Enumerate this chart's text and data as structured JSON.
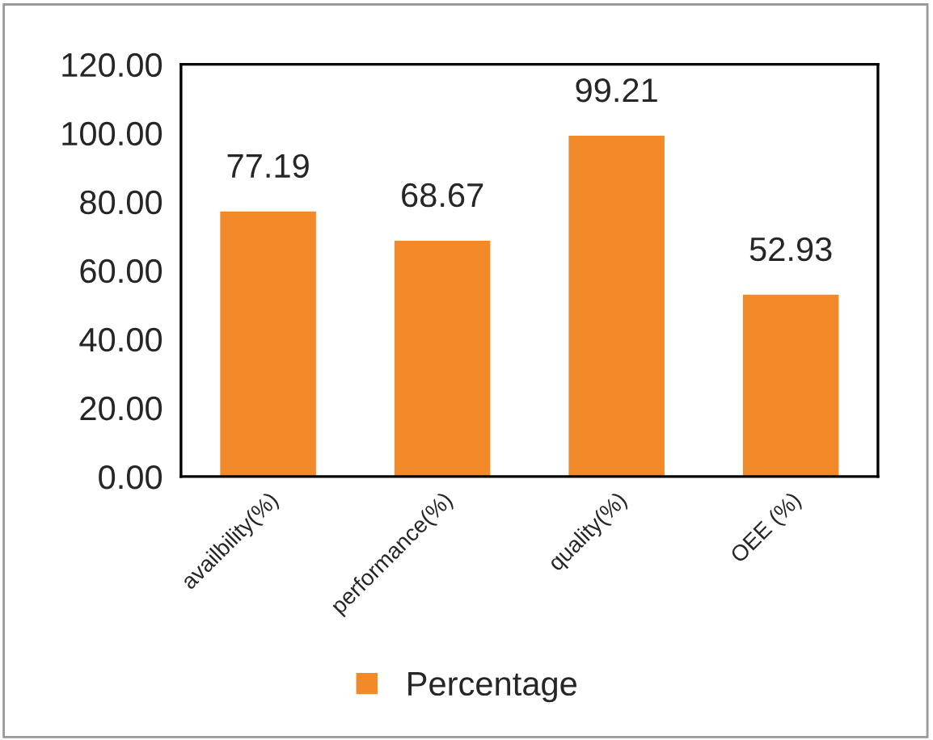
{
  "chart_data": {
    "type": "bar",
    "categories": [
      "availbility(%)",
      "performance(%)",
      "quality(%)",
      "OEE (%)"
    ],
    "series": [
      {
        "name": "Percentage",
        "color": "#f28a2a",
        "values": [
          77.19,
          68.67,
          99.21,
          52.93
        ]
      }
    ],
    "ylim": [
      0,
      120
    ],
    "yticks": [
      {
        "value": 0,
        "label": "0.00"
      },
      {
        "value": 20,
        "label": "20.00"
      },
      {
        "value": 40,
        "label": "40.00"
      },
      {
        "value": 60,
        "label": "60.00"
      },
      {
        "value": 80,
        "label": "80.00"
      },
      {
        "value": 100,
        "label": "100.00"
      },
      {
        "value": 120,
        "label": "120.00"
      }
    ],
    "data_labels": true,
    "legend": "bottom",
    "grid": false
  }
}
